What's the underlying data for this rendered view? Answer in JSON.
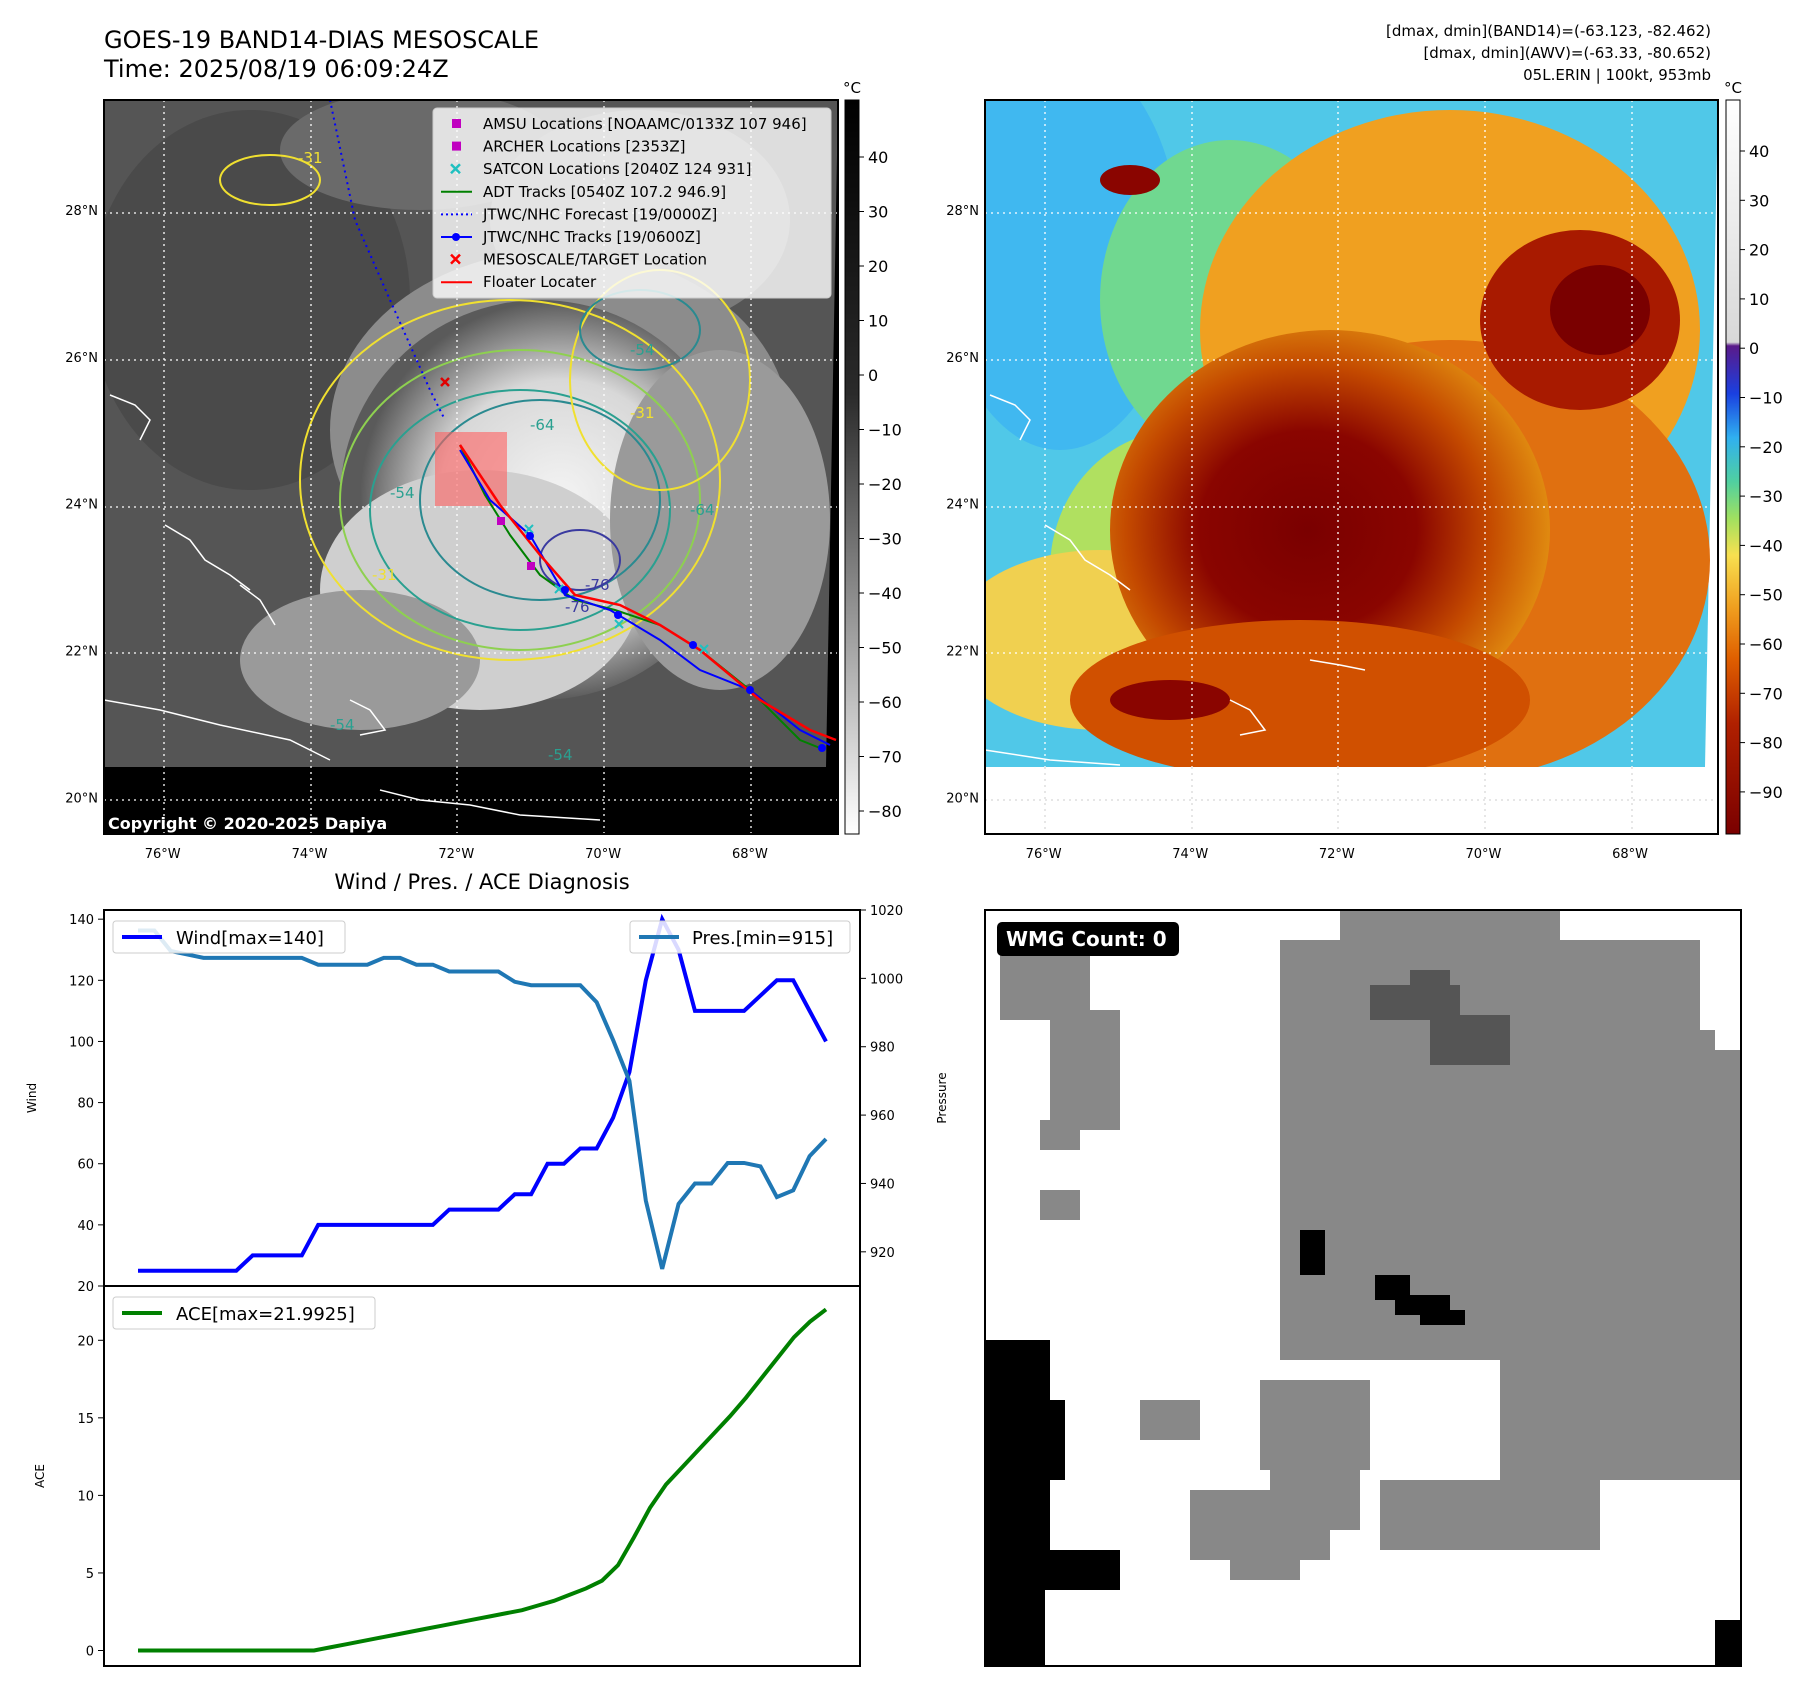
{
  "header": {
    "title_line1": "GOES-19 BAND14-DIAS MESOSCALE",
    "title_line2": "Time: 2025/08/19 06:09:24Z",
    "info_line1": "[dmax, dmin](BAND14)=(-63.123, -82.462)",
    "info_line2": "[dmax, dmin](AWV)=(-63.33, -80.652)",
    "info_line3": "05L.ERIN | 100kt, 953mb"
  },
  "map_axes": {
    "lon_ticks": [
      "76°W",
      "74°W",
      "72°W",
      "70°W",
      "68°W"
    ],
    "lon_values": [
      -76,
      -74,
      -72,
      -70,
      -68
    ],
    "lat_ticks": [
      "28°N",
      "26°N",
      "24°N",
      "22°N",
      "20°N"
    ],
    "lat_values": [
      28,
      26,
      24,
      22,
      20
    ],
    "lon_range": [
      -76.8,
      -66.8
    ],
    "lat_range": [
      19.5,
      29.5
    ]
  },
  "left_map": {
    "copyright": "Copyright © 2020-2025 Dapiya",
    "colorbar_unit": "°C",
    "colorbar_ticks": [
      "40",
      "30",
      "20",
      "10",
      "0",
      "−10",
      "−20",
      "−30",
      "−40",
      "−50",
      "−60",
      "−70",
      "−80"
    ],
    "contour_labels": [
      "-31",
      "-54",
      "-64",
      "-76",
      "-31",
      "-54",
      "-64",
      "-54",
      "-31",
      "-54",
      "-76"
    ],
    "legend": [
      {
        "label": "AMSU Locations [NOAAMC/0133Z 107 946]",
        "color": "#c000c0",
        "marker": "square"
      },
      {
        "label": "ARCHER Locations [2353Z]",
        "color": "#c000c0",
        "marker": "square"
      },
      {
        "label": "SATCON Locations [2040Z 124 931]",
        "color": "#20c0c0",
        "marker": "x"
      },
      {
        "label": "ADT Tracks [0540Z 107.2 946.9]",
        "color": "#008000",
        "marker": "line"
      },
      {
        "label": "JTWC/NHC Forecast [19/0000Z]",
        "color": "#0000ff",
        "marker": "dotted"
      },
      {
        "label": "JTWC/NHC Tracks [19/0600Z]",
        "color": "#0000ff",
        "marker": "line-dot"
      },
      {
        "label": "MESOSCALE/TARGET Location",
        "color": "#ff0000",
        "marker": "x"
      },
      {
        "label": "Floater Locater",
        "color": "#ff0000",
        "marker": "line"
      }
    ]
  },
  "right_map": {
    "colorbar_unit": "°C",
    "colorbar_ticks": [
      "40",
      "30",
      "20",
      "10",
      "0",
      "−10",
      "−20",
      "−30",
      "−40",
      "−50",
      "−60",
      "−70",
      "−80",
      "−90"
    ]
  },
  "wmg": {
    "label": "WMG Count: 0"
  },
  "chart_data": [
    {
      "type": "line",
      "title": "Wind / Pres. / ACE Diagnosis",
      "ylabel": "Wind",
      "ylim": [
        20,
        143
      ],
      "yticks": [
        20,
        40,
        60,
        80,
        100,
        120,
        140
      ],
      "series": [
        {
          "name": "Wind[max=140]",
          "color": "#0000ff",
          "values": [
            25,
            25,
            25,
            25,
            25,
            25,
            25,
            30,
            30,
            30,
            30,
            40,
            40,
            40,
            40,
            40,
            40,
            40,
            40,
            45,
            45,
            45,
            45,
            50,
            50,
            60,
            60,
            65,
            65,
            75,
            90,
            120,
            140,
            130,
            110,
            110,
            110,
            110,
            115,
            120,
            120,
            110,
            100
          ]
        }
      ],
      "secondary": {
        "ylabel": "Pressure",
        "ylim": [
          910,
          1020
        ],
        "yticks": [
          920,
          940,
          960,
          980,
          1000,
          1020
        ],
        "series": [
          {
            "name": "Pres.[min=915]",
            "color": "#1f77b4",
            "values": [
              1014,
              1014,
              1008,
              1007,
              1006,
              1006,
              1006,
              1006,
              1006,
              1006,
              1006,
              1004,
              1004,
              1004,
              1004,
              1006,
              1006,
              1004,
              1004,
              1002,
              1002,
              1002,
              1002,
              999,
              998,
              998,
              998,
              998,
              993,
              982,
              970,
              935,
              915,
              934,
              940,
              940,
              946,
              946,
              945,
              936,
              938,
              948,
              953
            ]
          }
        ]
      }
    },
    {
      "type": "line",
      "ylabel": "ACE",
      "ylim": [
        -1,
        23.5
      ],
      "yticks": [
        0,
        5,
        10,
        15,
        20
      ],
      "series": [
        {
          "name": "ACE[max=21.9925]",
          "color": "#008000",
          "values": [
            0,
            0,
            0,
            0,
            0,
            0,
            0,
            0,
            0,
            0,
            0,
            0,
            0.2,
            0.4,
            0.6,
            0.8,
            1.0,
            1.2,
            1.4,
            1.6,
            1.8,
            2.0,
            2.2,
            2.4,
            2.6,
            2.9,
            3.2,
            3.6,
            4.0,
            4.5,
            5.5,
            7.3,
            9.2,
            10.7,
            11.8,
            12.9,
            14.0,
            15.1,
            16.3,
            17.6,
            18.9,
            20.2,
            21.2,
            21.99
          ]
        }
      ]
    }
  ]
}
